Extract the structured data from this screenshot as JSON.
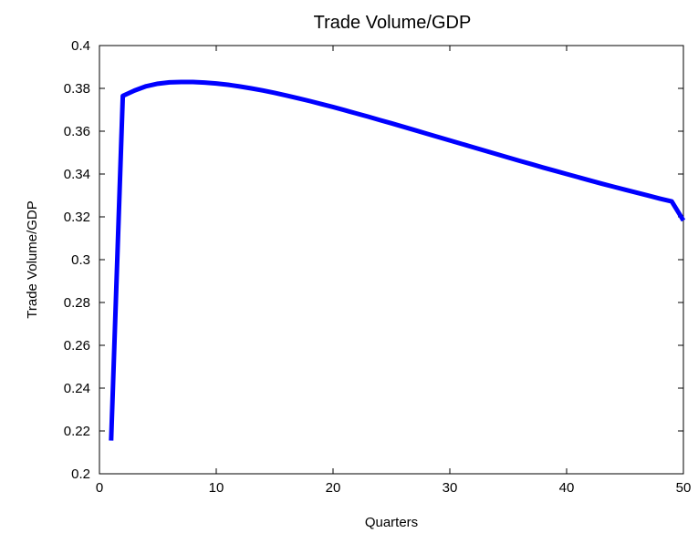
{
  "chart_data": {
    "type": "line",
    "title": "Trade Volume/GDP",
    "xlabel": "Quarters",
    "ylabel": "Trade Volume/GDP",
    "xlim": [
      0,
      50
    ],
    "ylim": [
      0.2,
      0.4
    ],
    "xticks": [
      "0",
      "10",
      "20",
      "30",
      "40",
      "50"
    ],
    "yticks": [
      "0.2",
      "0.22",
      "0.24",
      "0.26",
      "0.28",
      "0.3",
      "0.32",
      "0.34",
      "0.36",
      "0.38",
      "0.4"
    ],
    "grid": false,
    "series_color": "#0000ff",
    "series": [
      {
        "x": [
          1,
          2,
          3,
          4,
          5,
          6,
          7,
          8,
          9,
          10,
          11,
          12,
          13,
          14,
          15,
          16,
          17,
          18,
          19,
          20,
          21,
          22,
          23,
          24,
          25,
          26,
          27,
          28,
          29,
          30,
          31,
          32,
          33,
          34,
          35,
          36,
          37,
          38,
          39,
          40,
          41,
          42,
          43,
          44,
          45,
          46,
          47,
          48,
          49,
          50
        ],
        "values": [
          0.2155,
          0.3765,
          0.379,
          0.381,
          0.3822,
          0.3828,
          0.383,
          0.383,
          0.3827,
          0.3823,
          0.3817,
          0.3809,
          0.38,
          0.379,
          0.3779,
          0.3767,
          0.3754,
          0.3741,
          0.3727,
          0.3713,
          0.3698,
          0.3683,
          0.3668,
          0.3652,
          0.3637,
          0.3621,
          0.3605,
          0.3589,
          0.3573,
          0.3557,
          0.3541,
          0.3525,
          0.3509,
          0.3493,
          0.3477,
          0.3461,
          0.3446,
          0.343,
          0.3415,
          0.34,
          0.3385,
          0.337,
          0.3355,
          0.3341,
          0.3327,
          0.3313,
          0.3299,
          0.3285,
          0.3272,
          0.3183
        ]
      }
    ]
  }
}
